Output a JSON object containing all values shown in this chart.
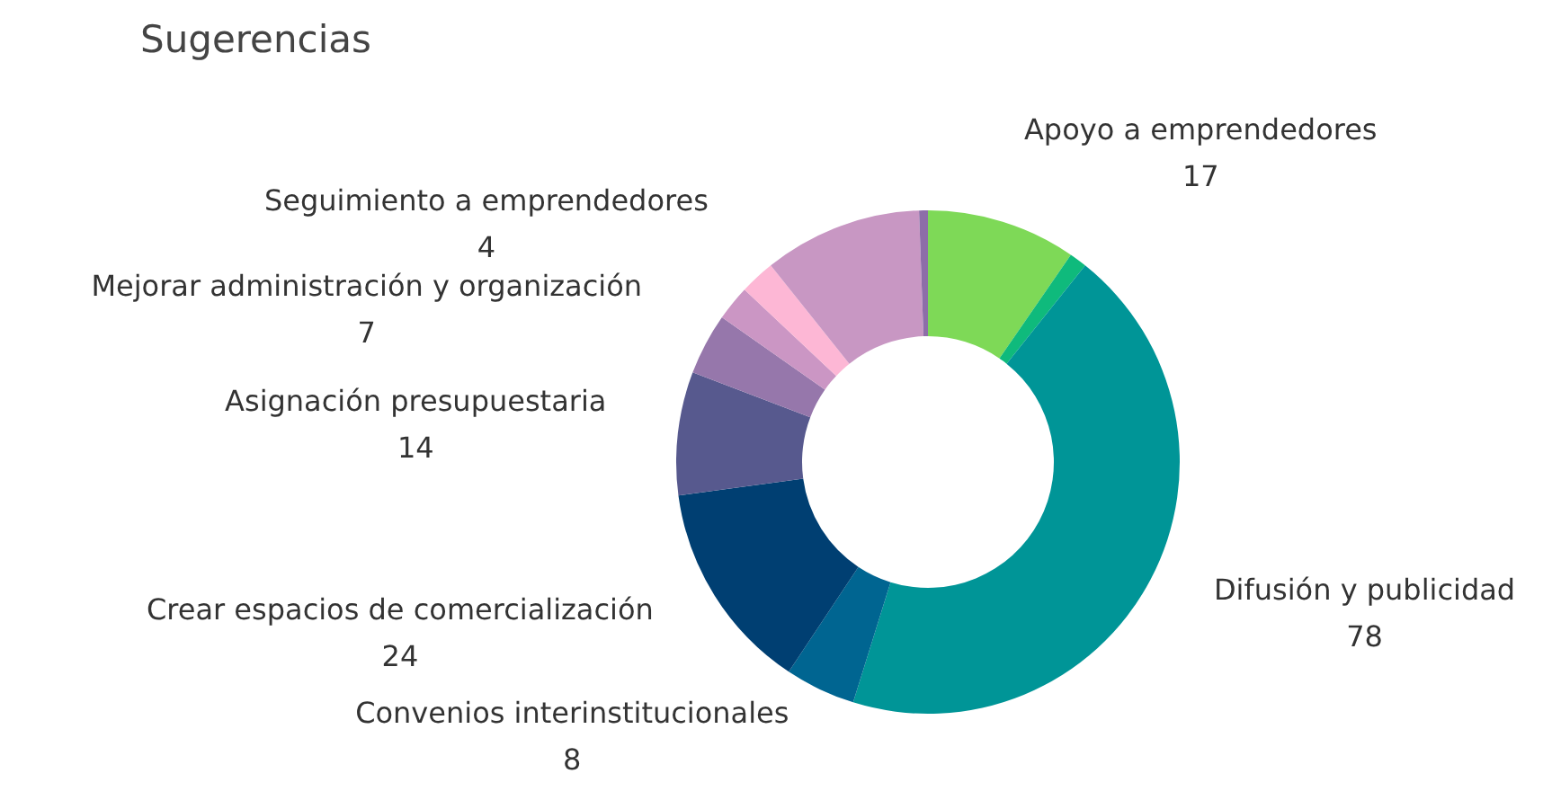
{
  "chart_data": {
    "type": "donut",
    "title": "Sugerencias",
    "categories": [
      "Apoyo a emprendedores",
      null,
      "Difusión y publicidad",
      "Convenios interinstitucionales",
      "Crear espacios de comercialización",
      "Asignación presupuestaria",
      "Mejorar administración y organización",
      null,
      "Seguimiento a emprendedores",
      null,
      null
    ],
    "values": [
      17,
      2,
      78,
      8,
      24,
      14,
      7,
      4,
      4,
      18,
      1
    ],
    "value_labels": [
      "17",
      null,
      "78",
      "8",
      "24",
      "14",
      "7",
      null,
      "4",
      null,
      null
    ],
    "colors": [
      "#7ed957",
      "#0fba7c",
      "#009597",
      "#006591",
      "#003f72",
      "#57598e",
      "#9677ab",
      "#cb96c4",
      "#fdb7d5",
      "#c897c3",
      "#8d6ea8"
    ],
    "legend": false
  }
}
